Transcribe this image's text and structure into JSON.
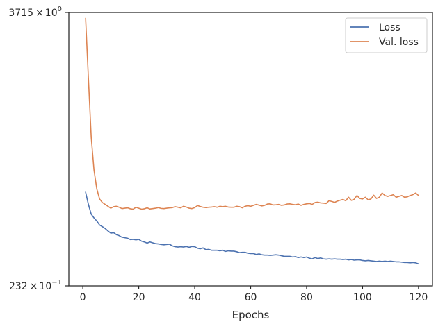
{
  "chart_data": {
    "type": "line",
    "title": "",
    "xlabel": "Epochs",
    "ylabel": "",
    "yscale": "log",
    "xlim": [
      -5,
      125
    ],
    "ylim": [
      0.232,
      3.715
    ],
    "grid": false,
    "legend_position": "top-right",
    "x_ticks": [
      0,
      20,
      40,
      60,
      80,
      100,
      120
    ],
    "y_tick_labels": [
      {
        "value": 3.715,
        "mantissa": "3715",
        "base": "10",
        "exponent": "0"
      },
      {
        "value": 0.232,
        "mantissa": "232",
        "base": "10",
        "exponent": "−1"
      }
    ],
    "series": [
      {
        "name": "Loss",
        "color": "#4c72b0",
        "x": [
          1,
          2,
          3,
          4,
          5,
          6,
          7,
          8,
          9,
          10,
          11,
          12,
          13,
          14,
          15,
          16,
          17,
          18,
          19,
          20,
          21,
          22,
          23,
          24,
          25,
          26,
          27,
          28,
          29,
          30,
          31,
          32,
          33,
          34,
          35,
          36,
          37,
          38,
          39,
          40,
          41,
          42,
          43,
          44,
          45,
          46,
          47,
          48,
          49,
          50,
          51,
          52,
          53,
          54,
          55,
          56,
          57,
          58,
          59,
          60,
          61,
          62,
          63,
          64,
          65,
          66,
          67,
          68,
          69,
          70,
          71,
          72,
          73,
          74,
          75,
          76,
          77,
          78,
          79,
          80,
          81,
          82,
          83,
          84,
          85,
          86,
          87,
          88,
          89,
          90,
          91,
          92,
          93,
          94,
          95,
          96,
          97,
          98,
          99,
          100,
          101,
          102,
          103,
          104,
          105,
          106,
          107,
          108,
          109,
          110,
          111,
          112,
          113,
          114,
          115,
          116,
          117,
          118,
          119,
          120
        ],
        "values": [
          0.6,
          0.53,
          0.48,
          0.462,
          0.448,
          0.43,
          0.423,
          0.415,
          0.405,
          0.396,
          0.398,
          0.39,
          0.386,
          0.38,
          0.378,
          0.376,
          0.371,
          0.372,
          0.37,
          0.372,
          0.365,
          0.362,
          0.358,
          0.362,
          0.359,
          0.356,
          0.355,
          0.353,
          0.352,
          0.353,
          0.354,
          0.348,
          0.345,
          0.344,
          0.345,
          0.344,
          0.346,
          0.343,
          0.346,
          0.345,
          0.34,
          0.338,
          0.341,
          0.335,
          0.336,
          0.333,
          0.333,
          0.333,
          0.331,
          0.333,
          0.329,
          0.331,
          0.33,
          0.33,
          0.328,
          0.325,
          0.326,
          0.326,
          0.323,
          0.322,
          0.322,
          0.319,
          0.321,
          0.318,
          0.317,
          0.317,
          0.316,
          0.317,
          0.318,
          0.317,
          0.315,
          0.313,
          0.313,
          0.313,
          0.311,
          0.312,
          0.309,
          0.311,
          0.309,
          0.311,
          0.307,
          0.305,
          0.309,
          0.306,
          0.308,
          0.305,
          0.304,
          0.305,
          0.304,
          0.305,
          0.304,
          0.304,
          0.303,
          0.304,
          0.302,
          0.303,
          0.301,
          0.302,
          0.302,
          0.3,
          0.299,
          0.3,
          0.299,
          0.298,
          0.297,
          0.298,
          0.297,
          0.298,
          0.297,
          0.298,
          0.297,
          0.296,
          0.296,
          0.295,
          0.294,
          0.294,
          0.293,
          0.294,
          0.293,
          0.29
        ]
      },
      {
        "name": "Val. loss",
        "color": "#dd8452",
        "x": [
          1,
          2,
          3,
          4,
          5,
          6,
          7,
          8,
          9,
          10,
          11,
          12,
          13,
          14,
          15,
          16,
          17,
          18,
          19,
          20,
          21,
          22,
          23,
          24,
          25,
          26,
          27,
          28,
          29,
          30,
          31,
          32,
          33,
          34,
          35,
          36,
          37,
          38,
          39,
          40,
          41,
          42,
          43,
          44,
          45,
          46,
          47,
          48,
          49,
          50,
          51,
          52,
          53,
          54,
          55,
          56,
          57,
          58,
          59,
          60,
          61,
          62,
          63,
          64,
          65,
          66,
          67,
          68,
          69,
          70,
          71,
          72,
          73,
          74,
          75,
          76,
          77,
          78,
          79,
          80,
          81,
          82,
          83,
          84,
          85,
          86,
          87,
          88,
          89,
          90,
          91,
          92,
          93,
          94,
          95,
          96,
          97,
          98,
          99,
          100,
          101,
          102,
          103,
          104,
          105,
          106,
          107,
          108,
          109,
          110,
          111,
          112,
          113,
          114,
          115,
          116,
          117,
          118,
          119,
          120
        ],
        "values": [
          3.5,
          1.9,
          1.05,
          0.75,
          0.62,
          0.56,
          0.54,
          0.53,
          0.52,
          0.51,
          0.518,
          0.52,
          0.515,
          0.508,
          0.51,
          0.512,
          0.507,
          0.505,
          0.515,
          0.51,
          0.505,
          0.507,
          0.512,
          0.506,
          0.508,
          0.51,
          0.513,
          0.509,
          0.508,
          0.51,
          0.512,
          0.513,
          0.518,
          0.515,
          0.512,
          0.52,
          0.516,
          0.51,
          0.508,
          0.513,
          0.524,
          0.519,
          0.515,
          0.513,
          0.515,
          0.516,
          0.518,
          0.515,
          0.52,
          0.518,
          0.52,
          0.516,
          0.515,
          0.515,
          0.52,
          0.518,
          0.512,
          0.52,
          0.523,
          0.52,
          0.525,
          0.53,
          0.526,
          0.522,
          0.525,
          0.532,
          0.533,
          0.527,
          0.528,
          0.53,
          0.525,
          0.527,
          0.532,
          0.533,
          0.53,
          0.528,
          0.532,
          0.525,
          0.53,
          0.533,
          0.535,
          0.53,
          0.54,
          0.542,
          0.538,
          0.537,
          0.535,
          0.55,
          0.546,
          0.541,
          0.548,
          0.553,
          0.557,
          0.55,
          0.57,
          0.552,
          0.558,
          0.58,
          0.563,
          0.56,
          0.57,
          0.555,
          0.56,
          0.582,
          0.563,
          0.57,
          0.595,
          0.58,
          0.575,
          0.58,
          0.585,
          0.57,
          0.575,
          0.58,
          0.57,
          0.572,
          0.58,
          0.585,
          0.595,
          0.58
        ]
      }
    ]
  }
}
